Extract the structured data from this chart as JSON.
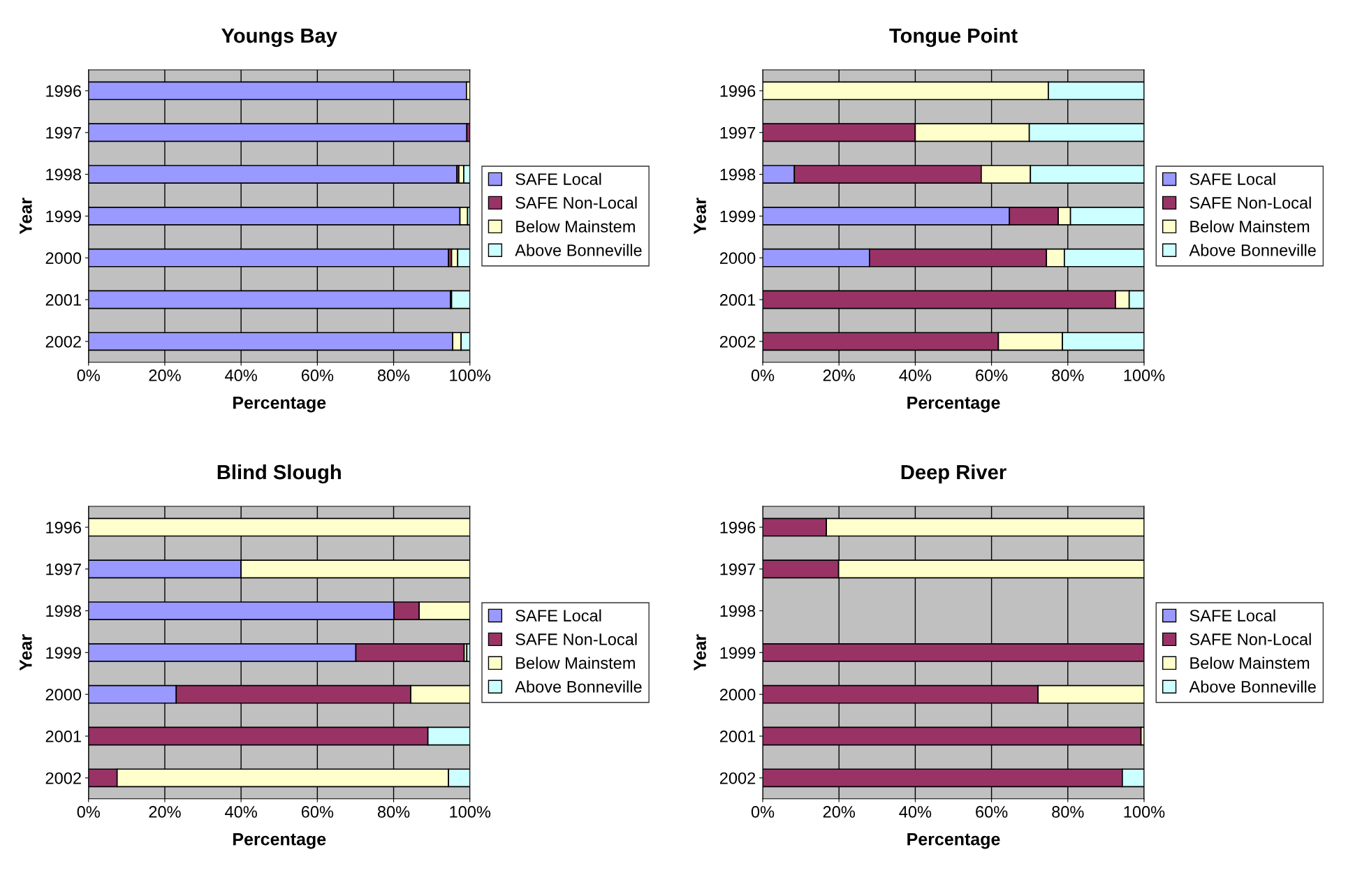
{
  "chart_data": [
    {
      "type": "bar",
      "orientation": "horizontal",
      "stacked": true,
      "title": "Youngs Bay",
      "xlabel": "Percentage",
      "ylabel": "Year",
      "grid": "x",
      "legend": "right",
      "categories": [
        "1996",
        "1997",
        "1998",
        "1999",
        "2000",
        "2001",
        "2002"
      ],
      "xlim": [
        0,
        100
      ],
      "xticks": [
        {
          "value": 0,
          "label": "0%"
        },
        {
          "value": 20,
          "label": "20%"
        },
        {
          "value": 40,
          "label": "40%"
        },
        {
          "value": 60,
          "label": "60%"
        },
        {
          "value": 80,
          "label": "80%"
        },
        {
          "value": 100,
          "label": "100%"
        }
      ],
      "series": [
        {
          "name": "SAFE Local",
          "color": "#9999ff",
          "values": [
            99.1,
            99.2,
            96.6,
            97.4,
            94.4,
            94.9,
            95.5
          ]
        },
        {
          "name": "SAFE Non-Local",
          "color": "#993366",
          "values": [
            0,
            0.8,
            0.5,
            0,
            0.8,
            0.3,
            0
          ]
        },
        {
          "name": "Below Mainstem",
          "color": "#ffffcc",
          "values": [
            0.9,
            0,
            1.3,
            2.0,
            1.6,
            0,
            2.2
          ]
        },
        {
          "name": "Above Bonneville",
          "color": "#ccffff",
          "values": [
            0,
            0,
            1.6,
            0.6,
            3.2,
            4.8,
            2.3
          ]
        }
      ]
    },
    {
      "type": "bar",
      "orientation": "horizontal",
      "stacked": true,
      "title": "Tongue Point",
      "xlabel": "Percentage",
      "ylabel": "Year",
      "grid": "x",
      "legend": "right",
      "categories": [
        "1996",
        "1997",
        "1998",
        "1999",
        "2000",
        "2001",
        "2002"
      ],
      "xlim": [
        0,
        100
      ],
      "xticks": [
        {
          "value": 0,
          "label": "0%"
        },
        {
          "value": 20,
          "label": "20%"
        },
        {
          "value": 40,
          "label": "40%"
        },
        {
          "value": 60,
          "label": "60%"
        },
        {
          "value": 80,
          "label": "80%"
        },
        {
          "value": 100,
          "label": "100%"
        }
      ],
      "series": [
        {
          "name": "SAFE Local",
          "color": "#9999ff",
          "values": [
            0,
            0,
            8.3,
            64.7,
            28.0,
            0,
            0
          ]
        },
        {
          "name": "SAFE Non-Local",
          "color": "#993366",
          "values": [
            0,
            40.0,
            49.0,
            12.8,
            46.4,
            92.5,
            61.8
          ]
        },
        {
          "name": "Below Mainstem",
          "color": "#ffffcc",
          "values": [
            74.9,
            29.9,
            12.9,
            3.2,
            4.7,
            3.6,
            16.8
          ]
        },
        {
          "name": "Above Bonneville",
          "color": "#ccffff",
          "values": [
            25.1,
            30.1,
            29.8,
            19.3,
            20.9,
            3.9,
            21.4
          ]
        }
      ]
    },
    {
      "type": "bar",
      "orientation": "horizontal",
      "stacked": true,
      "title": "Blind Slough",
      "xlabel": "Percentage",
      "ylabel": "Year",
      "grid": "x",
      "legend": "right",
      "categories": [
        "1996",
        "1997",
        "1998",
        "1999",
        "2000",
        "2001",
        "2002"
      ],
      "xlim": [
        0,
        100
      ],
      "xticks": [
        {
          "value": 0,
          "label": "0%"
        },
        {
          "value": 20,
          "label": "20%"
        },
        {
          "value": 40,
          "label": "40%"
        },
        {
          "value": 60,
          "label": "60%"
        },
        {
          "value": 80,
          "label": "80%"
        },
        {
          "value": 100,
          "label": "100%"
        }
      ],
      "series": [
        {
          "name": "SAFE Local",
          "color": "#9999ff",
          "values": [
            0,
            40.0,
            80.1,
            70.1,
            23.0,
            0,
            0
          ]
        },
        {
          "name": "SAFE Non-Local",
          "color": "#993366",
          "values": [
            0,
            0,
            6.6,
            28.4,
            61.5,
            89.0,
            7.5
          ]
        },
        {
          "name": "Below Mainstem",
          "color": "#ffffcc",
          "values": [
            100,
            60.0,
            13.3,
            0.7,
            15.5,
            0,
            86.9
          ]
        },
        {
          "name": "Above Bonneville",
          "color": "#ccffff",
          "values": [
            0,
            0,
            0,
            0.8,
            0,
            11.0,
            5.6
          ]
        }
      ]
    },
    {
      "type": "bar",
      "orientation": "horizontal",
      "stacked": true,
      "title": "Deep River",
      "xlabel": "Percentage",
      "ylabel": "Year",
      "grid": "x",
      "legend": "right",
      "categories": [
        "1996",
        "1997",
        "1998",
        "1999",
        "2000",
        "2001",
        "2002"
      ],
      "xlim": [
        0,
        100
      ],
      "xticks": [
        {
          "value": 0,
          "label": "0%"
        },
        {
          "value": 20,
          "label": "20%"
        },
        {
          "value": 40,
          "label": "40%"
        },
        {
          "value": 60,
          "label": "60%"
        },
        {
          "value": 80,
          "label": "80%"
        },
        {
          "value": 100,
          "label": "100%"
        }
      ],
      "series": [
        {
          "name": "SAFE Local",
          "color": "#9999ff",
          "values": [
            0,
            0,
            0,
            0,
            0,
            0,
            0
          ]
        },
        {
          "name": "SAFE Non-Local",
          "color": "#993366",
          "values": [
            16.7,
            19.9,
            0,
            100,
            72.2,
            99.2,
            94.3
          ]
        },
        {
          "name": "Below Mainstem",
          "color": "#ffffcc",
          "values": [
            83.3,
            80.1,
            0,
            0,
            27.8,
            0.8,
            0
          ]
        },
        {
          "name": "Above Bonneville",
          "color": "#ccffff",
          "values": [
            0,
            0,
            0,
            0,
            0,
            0,
            5.7
          ]
        }
      ]
    }
  ]
}
